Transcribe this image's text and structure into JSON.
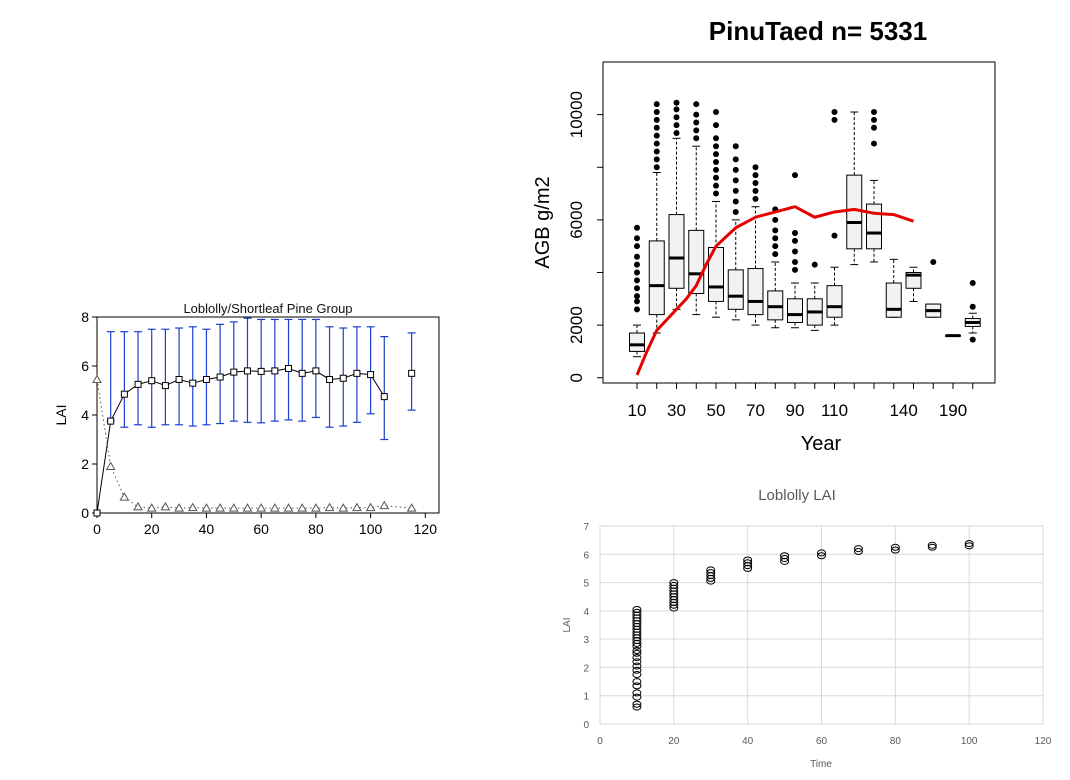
{
  "chart_data": [
    {
      "type": "line",
      "title": "Loblolly/Shortleaf Pine Group",
      "xlabel": "",
      "ylabel": "LAI",
      "xlim": [
        0,
        125
      ],
      "ylim": [
        0,
        8
      ],
      "xticks": [
        "0",
        "20",
        "40",
        "60",
        "80",
        "100",
        "120"
      ],
      "yticks": [
        "0",
        "2",
        "4",
        "6",
        "8"
      ],
      "grid": false,
      "series": [
        {
          "marker": "square",
          "color": "#000000",
          "line": "solid",
          "x": [
            0,
            5,
            10,
            15,
            20,
            25,
            30,
            35,
            40,
            45,
            50,
            55,
            60,
            65,
            70,
            75,
            80,
            85,
            90,
            95,
            100,
            105
          ],
          "y": [
            0,
            3.75,
            4.85,
            5.25,
            5.4,
            5.2,
            5.45,
            5.3,
            5.45,
            5.55,
            5.75,
            5.8,
            5.78,
            5.8,
            5.9,
            5.7,
            5.8,
            5.45,
            5.5,
            5.7,
            5.65,
            4.75
          ],
          "err_low": [
            0,
            0,
            1.35,
            1.65,
            1.9,
            1.6,
            1.85,
            1.75,
            1.85,
            1.9,
            2.0,
            2.1,
            2.1,
            2.05,
            2.1,
            1.95,
            1.9,
            1.95,
            1.95,
            2.0,
            1.6,
            1.75
          ],
          "err_high": [
            0,
            3.65,
            2.55,
            2.15,
            2.1,
            2.3,
            2.1,
            2.3,
            2.05,
            2.15,
            2.05,
            2.15,
            2.12,
            2.1,
            2.0,
            2.2,
            2.1,
            2.15,
            2.05,
            1.9,
            1.95,
            2.45
          ]
        },
        {
          "marker": "square",
          "color": "#000000",
          "line": "none",
          "x": [
            115
          ],
          "y": [
            5.7
          ],
          "err_low": [
            1.5
          ],
          "err_high": [
            1.65
          ]
        },
        {
          "marker": "triangle",
          "color": "#555555",
          "line": "dotted",
          "x": [
            0,
            5,
            10,
            15,
            20,
            25,
            30,
            35,
            40,
            45,
            50,
            55,
            60,
            65,
            70,
            75,
            80,
            85,
            90,
            95,
            100,
            105,
            115
          ],
          "y": [
            5.45,
            1.9,
            0.65,
            0.25,
            0.2,
            0.25,
            0.2,
            0.22,
            0.2,
            0.2,
            0.2,
            0.2,
            0.2,
            0.2,
            0.2,
            0.2,
            0.2,
            0.22,
            0.2,
            0.22,
            0.22,
            0.3,
            0.2
          ]
        }
      ],
      "error_bar_color": "#1a3fd1"
    },
    {
      "type": "box",
      "title": "PinuTaed n= 5331",
      "xlabel": "Year",
      "ylabel": "AGB g/m2",
      "ylim": [
        -200,
        12000
      ],
      "yticks": [
        "0",
        "2000",
        "6000",
        "10000"
      ],
      "xticks": [
        "10",
        "30",
        "50",
        "70",
        "90",
        "110",
        "140",
        "190"
      ],
      "grid": false,
      "boxes": [
        {
          "q1": 1000,
          "med": 1250,
          "q3": 1700,
          "lo": 800,
          "hi": 2000,
          "outliers": [
            2600,
            2900,
            3100,
            3400,
            3700,
            4000,
            4300,
            4600,
            5000,
            5300,
            5700
          ]
        },
        {
          "q1": 2400,
          "med": 3500,
          "q3": 5200,
          "lo": 1700,
          "hi": 7800,
          "outliers": [
            8000,
            8300,
            8600,
            8900,
            9200,
            9500,
            9800,
            10100,
            10400
          ]
        },
        {
          "q1": 3400,
          "med": 4550,
          "q3": 6200,
          "lo": 2600,
          "hi": 9100,
          "outliers": [
            9300,
            9600,
            9900,
            10200,
            10450
          ]
        },
        {
          "q1": 3200,
          "med": 3950,
          "q3": 5600,
          "lo": 2400,
          "hi": 8800,
          "outliers": [
            9100,
            9400,
            9700,
            10000,
            10400
          ]
        },
        {
          "q1": 2900,
          "med": 3450,
          "q3": 4950,
          "lo": 2300,
          "hi": 6700,
          "outliers": [
            7000,
            7300,
            7600,
            7900,
            8200,
            8500,
            8800,
            9100,
            9600,
            10100
          ]
        },
        {
          "q1": 2600,
          "med": 3100,
          "q3": 4100,
          "lo": 2200,
          "hi": 6000,
          "outliers": [
            6300,
            6700,
            7100,
            7500,
            7900,
            8300,
            8800
          ]
        },
        {
          "q1": 2400,
          "med": 2900,
          "q3": 4150,
          "lo": 2000,
          "hi": 6500,
          "outliers": [
            6800,
            7100,
            7400,
            7700,
            8000
          ]
        },
        {
          "q1": 2200,
          "med": 2700,
          "q3": 3300,
          "lo": 1900,
          "hi": 4400,
          "outliers": [
            4700,
            5000,
            5300,
            5600,
            6000,
            6400
          ]
        },
        {
          "q1": 2100,
          "med": 2400,
          "q3": 3000,
          "lo": 1900,
          "hi": 3600,
          "outliers": [
            4100,
            4400,
            4800,
            5200,
            5500,
            7700
          ]
        },
        {
          "q1": 2000,
          "med": 2500,
          "q3": 3000,
          "lo": 1800,
          "hi": 3600,
          "outliers": [
            4300
          ]
        },
        {
          "q1": 2300,
          "med": 2700,
          "q3": 3500,
          "lo": 2000,
          "hi": 4200,
          "outliers": [
            5400,
            9800,
            10100
          ]
        },
        {
          "q1": 4900,
          "med": 5900,
          "q3": 7700,
          "lo": 4300,
          "hi": 10100,
          "outliers": []
        },
        {
          "q1": 4900,
          "med": 5500,
          "q3": 6600,
          "lo": 4400,
          "hi": 7500,
          "outliers": [
            8900,
            9500,
            9800,
            10100
          ]
        },
        {
          "q1": 2300,
          "med": 2600,
          "q3": 3600,
          "lo": 2300,
          "hi": 4500,
          "outliers": []
        },
        {
          "q1": 3400,
          "med": 3900,
          "q3": 4000,
          "lo": 2900,
          "hi": 4200,
          "outliers": []
        },
        {
          "q1": 2300,
          "med": 2550,
          "q3": 2800,
          "lo": 2300,
          "hi": 2800,
          "outliers": [
            4400
          ]
        },
        {
          "q1": 1600,
          "med": 1600,
          "q3": 1600,
          "lo": 1600,
          "hi": 1600,
          "outliers": []
        },
        {
          "q1": 1950,
          "med": 2100,
          "q3": 2250,
          "lo": 1700,
          "hi": 2450,
          "outliers": [
            1450,
            2700,
            3600
          ]
        }
      ],
      "series": [
        {
          "color": "#e60000",
          "x_box_index": [
            0,
            0.5,
            1,
            1.5,
            2,
            2.5,
            3,
            3.5,
            4,
            5,
            6,
            7,
            8,
            9,
            10,
            11,
            12,
            13,
            14
          ],
          "values": [
            100,
            1000,
            1800,
            2200,
            2600,
            3000,
            3500,
            4300,
            5000,
            5700,
            6100,
            6300,
            6500,
            6100,
            6300,
            6400,
            6250,
            6200,
            5950
          ]
        }
      ]
    },
    {
      "type": "scatter",
      "title": "Loblolly LAI",
      "xlabel": "Time",
      "ylabel": "LAI",
      "xlim": [
        0,
        120
      ],
      "ylim": [
        0,
        7
      ],
      "xticks": [
        "0",
        "20",
        "40",
        "60",
        "80",
        "100",
        "120"
      ],
      "yticks": [
        "0",
        "1",
        "2",
        "3",
        "4",
        "5",
        "6",
        "7"
      ],
      "grid": true,
      "series": [
        {
          "marker": "circle-open",
          "color": "#000000",
          "points": [
            [
              10,
              0.6
            ],
            [
              10,
              0.7
            ],
            [
              10,
              0.95
            ],
            [
              10,
              1.1
            ],
            [
              10,
              1.35
            ],
            [
              10,
              1.5
            ],
            [
              10,
              1.75
            ],
            [
              10,
              1.9
            ],
            [
              10,
              2.05
            ],
            [
              10,
              2.2
            ],
            [
              10,
              2.35
            ],
            [
              10,
              2.5
            ],
            [
              10,
              2.6
            ],
            [
              10,
              2.75
            ],
            [
              10,
              2.85
            ],
            [
              10,
              2.95
            ],
            [
              10,
              3.05
            ],
            [
              10,
              3.15
            ],
            [
              10,
              3.25
            ],
            [
              10,
              3.35
            ],
            [
              10,
              3.45
            ],
            [
              10,
              3.55
            ],
            [
              10,
              3.65
            ],
            [
              10,
              3.75
            ],
            [
              10,
              3.85
            ],
            [
              10,
              3.95
            ],
            [
              10,
              4.05
            ],
            [
              20,
              4.1
            ],
            [
              20,
              4.2
            ],
            [
              20,
              4.3
            ],
            [
              20,
              4.4
            ],
            [
              20,
              4.5
            ],
            [
              20,
              4.6
            ],
            [
              20,
              4.7
            ],
            [
              20,
              4.8
            ],
            [
              20,
              4.9
            ],
            [
              20,
              5.0
            ],
            [
              30,
              5.05
            ],
            [
              30,
              5.15
            ],
            [
              30,
              5.25
            ],
            [
              30,
              5.35
            ],
            [
              30,
              5.45
            ],
            [
              40,
              5.5
            ],
            [
              40,
              5.6
            ],
            [
              40,
              5.7
            ],
            [
              40,
              5.8
            ],
            [
              50,
              5.75
            ],
            [
              50,
              5.85
            ],
            [
              50,
              5.95
            ],
            [
              60,
              5.95
            ],
            [
              60,
              6.05
            ],
            [
              70,
              6.1
            ],
            [
              70,
              6.2
            ],
            [
              80,
              6.15
            ],
            [
              80,
              6.25
            ],
            [
              90,
              6.25
            ],
            [
              90,
              6.32
            ],
            [
              100,
              6.3
            ],
            [
              100,
              6.38
            ]
          ]
        }
      ]
    }
  ]
}
